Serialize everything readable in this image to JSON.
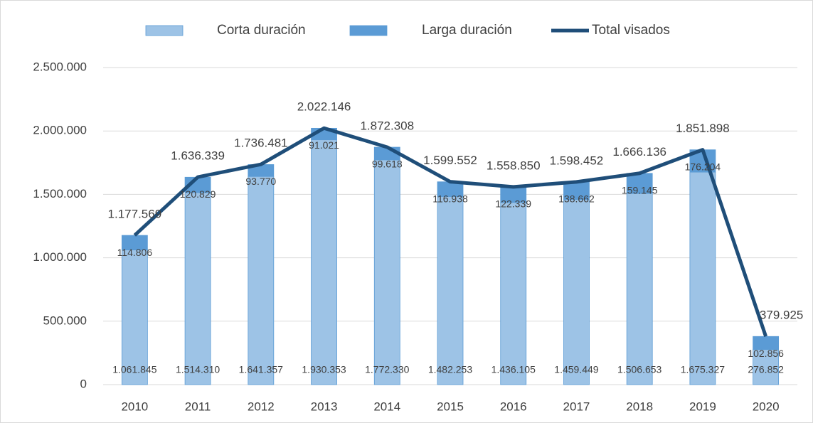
{
  "chart_data": {
    "type": "bar",
    "stacked": true,
    "categories": [
      "2010",
      "2011",
      "2012",
      "2013",
      "2014",
      "2015",
      "2016",
      "2017",
      "2018",
      "2019",
      "2020"
    ],
    "series": [
      {
        "name": "Corta duración",
        "type": "bar",
        "color": "#9dc3e6",
        "values": [
          1061845,
          1514310,
          1641357,
          1930353,
          1772330,
          1482253,
          1436105,
          1459449,
          1506653,
          1675327,
          276852
        ],
        "value_labels": [
          "1.061.845",
          "1.514.310",
          "1.641.357",
          "1.930.353",
          "1.772.330",
          "1.482.253",
          "1.436.105",
          "1.459.449",
          "1.506.653",
          "1.675.327",
          "276.852"
        ]
      },
      {
        "name": "Larga duración",
        "type": "bar",
        "color": "#5b9bd5",
        "values": [
          114806,
          120829,
          93770,
          91021,
          99618,
          116938,
          122339,
          138662,
          159145,
          176204,
          102856
        ],
        "value_labels": [
          "114.806",
          "120.829",
          "93.770",
          "91.021",
          "99.618",
          "116.938",
          "122.339",
          "138.662",
          "159.145",
          "176.204",
          "102.856"
        ]
      },
      {
        "name": "Total visados",
        "type": "line",
        "color": "#1f4e79",
        "values": [
          1177569,
          1636339,
          1736481,
          2022146,
          1872308,
          1599552,
          1558850,
          1598452,
          1666136,
          1851898,
          379925
        ],
        "value_labels": [
          "1.177.569",
          "1.636.339",
          "1.736.481",
          "2.022.146",
          "1.872.308",
          "1.599.552",
          "1.558.850",
          "1.598.452",
          "1.666.136",
          "1.851.898",
          "379.925"
        ]
      }
    ],
    "ylim": [
      0,
      2500000
    ],
    "yticks": [
      0,
      {
        "value": 500000,
        "label": "500.000"
      },
      {
        "value": 1000000,
        "label": "1.000.000"
      },
      {
        "value": 1500000,
        "label": "1.500.000"
      },
      {
        "value": 2000000,
        "label": "2.000.000"
      },
      {
        "value": 2500000,
        "label": "2.500.000"
      }
    ],
    "grid": true,
    "legend": "top"
  }
}
